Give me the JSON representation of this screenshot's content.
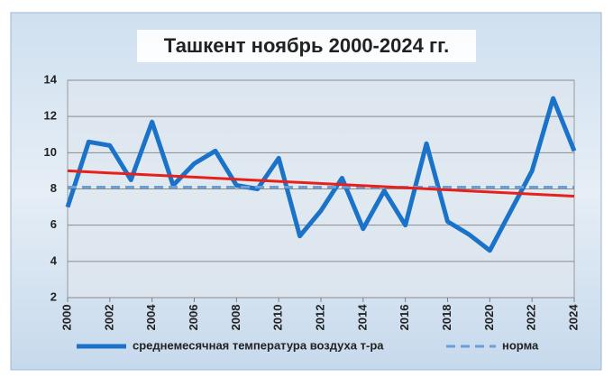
{
  "chart_data": {
    "type": "line",
    "title": "Ташкент ноябрь 2000-2024 гг.",
    "x": [
      2000,
      2001,
      2002,
      2003,
      2004,
      2005,
      2006,
      2007,
      2008,
      2009,
      2010,
      2011,
      2012,
      2013,
      2014,
      2015,
      2016,
      2017,
      2018,
      2019,
      2020,
      2021,
      2022,
      2023,
      2024
    ],
    "xlim": [
      2000,
      2024
    ],
    "xticks": [
      2000,
      2002,
      2004,
      2006,
      2008,
      2010,
      2012,
      2014,
      2016,
      2018,
      2020,
      2022,
      2024
    ],
    "ylim": [
      2,
      14
    ],
    "yticks": [
      2,
      4,
      6,
      8,
      10,
      12,
      14
    ],
    "grid": true,
    "series": [
      {
        "name": "среднемесячная температура воздуха т-ра",
        "color": "#1a73c9",
        "dashed": false,
        "values": [
          7.0,
          10.6,
          10.4,
          8.5,
          11.7,
          8.2,
          9.4,
          10.1,
          8.2,
          8.0,
          9.7,
          5.4,
          6.8,
          8.6,
          5.8,
          7.9,
          6.0,
          10.5,
          6.2,
          5.5,
          4.6,
          6.8,
          9.0,
          13.0,
          10.1
        ]
      },
      {
        "name": "норма",
        "color": "#6a9fd8",
        "dashed": true,
        "values": [
          8.1,
          8.1,
          8.1,
          8.1,
          8.1,
          8.1,
          8.1,
          8.1,
          8.1,
          8.1,
          8.1,
          8.1,
          8.1,
          8.1,
          8.1,
          8.1,
          8.1,
          8.1,
          8.1,
          8.1,
          8.1,
          8.1,
          8.1,
          8.1,
          8.1
        ]
      }
    ],
    "trend_line": {
      "x": [
        2000,
        2024
      ],
      "values": [
        9.0,
        7.6
      ],
      "color": "#e8201c"
    }
  }
}
